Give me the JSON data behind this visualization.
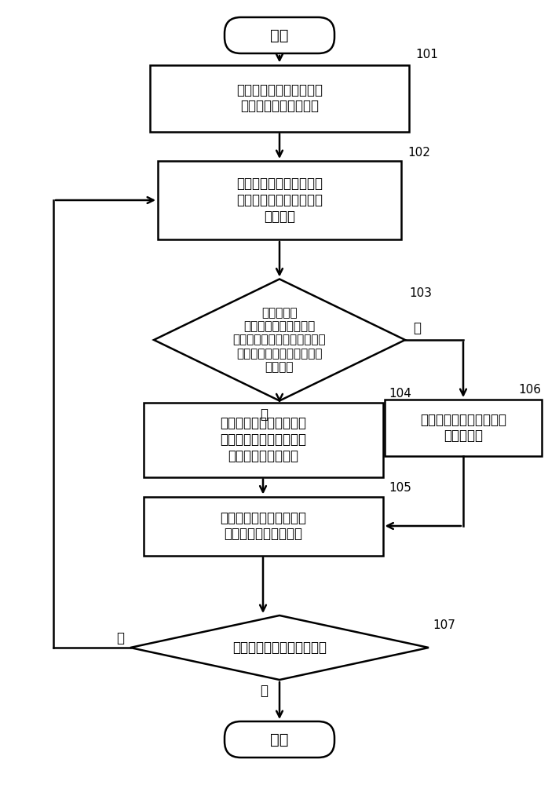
{
  "bg_color": "#ffffff",
  "line_color": "#000000",
  "text_color": "#000000",
  "start_text": "开始",
  "end_text": "结束",
  "box101_text": "计算机根据账户间的交易\n资金流向建立更新网络",
  "box102_text": "在更新网络中获取当前账\n户的邻接账户的交易资金\n流向信息",
  "diamond103_text": "根据获取的\n交易资金流向信息判断\n当前账户的邻接账户中，是否\n有邻接账户的交易资金流向\n当前账户",
  "box104_text": "根据获取的交易资金流向\n信息选取有交易资金流向\n当前账户的邻接账户",
  "box105_text": "根据选取的邻接账户的类\n型更新当前账户的类型",
  "box106_text": "将当前账户的类型更新为\n第二类账户",
  "diamond107_text": "判断是否满足更新停止条件",
  "label101": "101",
  "label102": "102",
  "label103": "103",
  "label104": "104",
  "label105": "105",
  "label106": "106",
  "label107": "107",
  "yes_text": "是",
  "no_text": "否"
}
